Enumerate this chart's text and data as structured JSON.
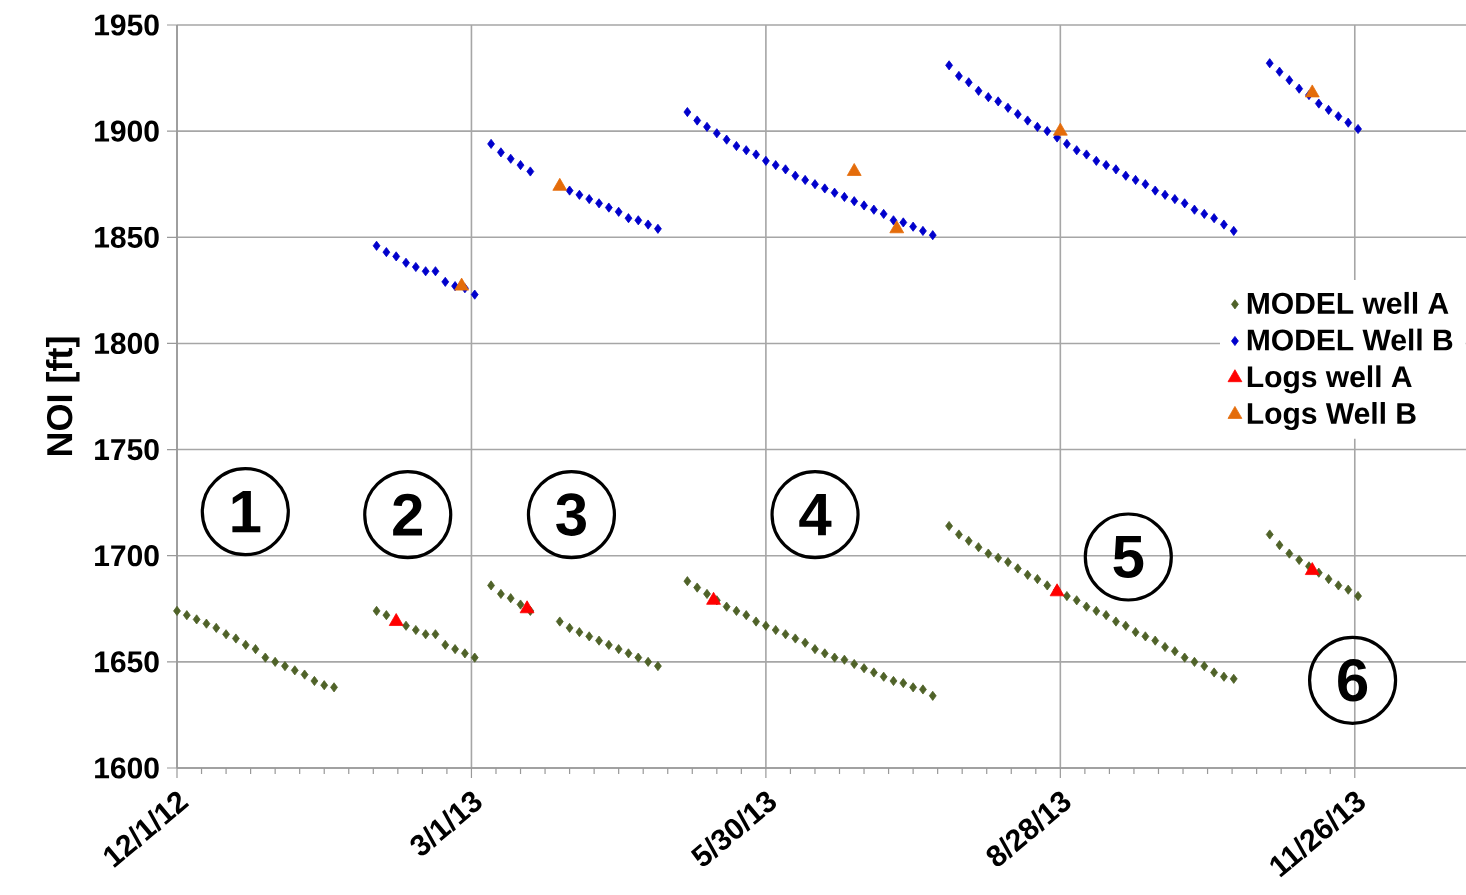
{
  "chart_data": {
    "type": "scatter",
    "ylabel": "NOI [ft]",
    "xlim": [
      "2012-12-01",
      "2013-12-30"
    ],
    "ylim": [
      1600,
      1950
    ],
    "xticks": [
      {
        "value": "2012-12-01",
        "label": "12/1/12"
      },
      {
        "value": "2013-03-01",
        "label": "3/1/13"
      },
      {
        "value": "2013-05-30",
        "label": "5/30/13"
      },
      {
        "value": "2013-08-28",
        "label": "8/28/13"
      },
      {
        "value": "2013-11-26",
        "label": "11/26/13"
      }
    ],
    "yticks": [
      1600,
      1650,
      1700,
      1750,
      1800,
      1850,
      1900,
      1950
    ],
    "grid": true,
    "legend": "right",
    "series": [
      {
        "name": "MODEL well A",
        "marker": "diamond",
        "color": "#4f6228",
        "x": [
          "2012-12-01",
          "2012-12-04",
          "2012-12-07",
          "2012-12-10",
          "2012-12-13",
          "2012-12-16",
          "2012-12-19",
          "2012-12-22",
          "2012-12-25",
          "2012-12-28",
          "2012-12-31",
          "2013-01-03",
          "2013-01-06",
          "2013-01-09",
          "2013-01-12",
          "2013-01-15",
          "2013-01-18",
          "2013-01-31",
          "2013-02-03",
          "2013-02-06",
          "2013-02-09",
          "2013-02-12",
          "2013-02-15",
          "2013-02-18",
          "2013-02-21",
          "2013-02-24",
          "2013-02-27",
          "2013-03-02",
          "2013-03-07",
          "2013-03-10",
          "2013-03-13",
          "2013-03-16",
          "2013-03-19",
          "2013-03-28",
          "2013-03-31",
          "2013-04-03",
          "2013-04-06",
          "2013-04-09",
          "2013-04-12",
          "2013-04-15",
          "2013-04-18",
          "2013-04-21",
          "2013-04-24",
          "2013-04-27",
          "2013-05-06",
          "2013-05-09",
          "2013-05-12",
          "2013-05-15",
          "2013-05-18",
          "2013-05-21",
          "2013-05-24",
          "2013-05-27",
          "2013-05-30",
          "2013-06-02",
          "2013-06-05",
          "2013-06-08",
          "2013-06-11",
          "2013-06-14",
          "2013-06-17",
          "2013-06-20",
          "2013-06-23",
          "2013-06-26",
          "2013-06-29",
          "2013-07-02",
          "2013-07-05",
          "2013-07-08",
          "2013-07-11",
          "2013-07-14",
          "2013-07-17",
          "2013-07-20",
          "2013-07-25",
          "2013-07-28",
          "2013-07-31",
          "2013-08-03",
          "2013-08-06",
          "2013-08-09",
          "2013-08-12",
          "2013-08-15",
          "2013-08-18",
          "2013-08-21",
          "2013-08-24",
          "2013-08-27",
          "2013-08-30",
          "2013-09-02",
          "2013-09-05",
          "2013-09-08",
          "2013-09-11",
          "2013-09-14",
          "2013-09-17",
          "2013-09-20",
          "2013-09-23",
          "2013-09-26",
          "2013-09-29",
          "2013-10-02",
          "2013-10-05",
          "2013-10-08",
          "2013-10-11",
          "2013-10-14",
          "2013-10-17",
          "2013-10-20",
          "2013-10-31",
          "2013-11-03",
          "2013-11-06",
          "2013-11-09",
          "2013-11-12",
          "2013-11-15",
          "2013-11-18",
          "2013-11-21",
          "2013-11-24",
          "2013-11-27"
        ],
        "values": [
          1674,
          1672,
          1670,
          1668,
          1666,
          1663,
          1661,
          1658,
          1656,
          1652,
          1650,
          1648,
          1646,
          1644,
          1641,
          1639,
          1638,
          1674,
          1672,
          null,
          1667,
          1665,
          1663,
          1663,
          1658,
          1656,
          1654,
          1652,
          1686,
          1682,
          1680,
          1677,
          1674,
          1669,
          1666,
          1664,
          1662,
          1660,
          1658,
          1656,
          1654,
          1652,
          1650,
          1648,
          1688,
          1685,
          1682,
          1679,
          1676,
          1674,
          1672,
          1669,
          1667,
          1665,
          1663,
          1661,
          1659,
          1656,
          1654,
          1652,
          1651,
          1649,
          1647,
          1645,
          1643,
          1641,
          1640,
          1638,
          1637,
          1634,
          1714,
          1710,
          1707,
          1704,
          1701,
          1699,
          1697,
          1694,
          1691,
          1689,
          1686,
          1684,
          1681,
          1679,
          1676,
          1674,
          1672,
          1669,
          1667,
          1664,
          1662,
          1660,
          1657,
          1655,
          1652,
          1650,
          1648,
          1645,
          1643,
          1642,
          1710,
          1705,
          1701,
          1698,
          1695,
          1692,
          1689,
          1686,
          1684,
          1681
        ]
      },
      {
        "name": "MODEL Well B",
        "marker": "diamond",
        "color": "#0000cc",
        "x": [
          "2013-01-31",
          "2013-02-03",
          "2013-02-06",
          "2013-02-09",
          "2013-02-12",
          "2013-02-15",
          "2013-02-18",
          "2013-02-21",
          "2013-02-24",
          "2013-02-27",
          "2013-03-02",
          "2013-03-07",
          "2013-03-10",
          "2013-03-13",
          "2013-03-16",
          "2013-03-19",
          "2013-03-28",
          "2013-03-31",
          "2013-04-03",
          "2013-04-06",
          "2013-04-09",
          "2013-04-12",
          "2013-04-15",
          "2013-04-18",
          "2013-04-21",
          "2013-04-24",
          "2013-04-27",
          "2013-05-06",
          "2013-05-09",
          "2013-05-12",
          "2013-05-15",
          "2013-05-18",
          "2013-05-21",
          "2013-05-24",
          "2013-05-27",
          "2013-05-30",
          "2013-06-02",
          "2013-06-05",
          "2013-06-08",
          "2013-06-11",
          "2013-06-14",
          "2013-06-17",
          "2013-06-20",
          "2013-06-23",
          "2013-06-26",
          "2013-06-29",
          "2013-07-02",
          "2013-07-05",
          "2013-07-08",
          "2013-07-11",
          "2013-07-14",
          "2013-07-17",
          "2013-07-20",
          "2013-07-25",
          "2013-07-28",
          "2013-07-31",
          "2013-08-03",
          "2013-08-06",
          "2013-08-09",
          "2013-08-12",
          "2013-08-15",
          "2013-08-18",
          "2013-08-21",
          "2013-08-24",
          "2013-08-27",
          "2013-08-30",
          "2013-09-02",
          "2013-09-05",
          "2013-09-08",
          "2013-09-11",
          "2013-09-14",
          "2013-09-17",
          "2013-09-20",
          "2013-09-23",
          "2013-09-26",
          "2013-09-29",
          "2013-10-02",
          "2013-10-05",
          "2013-10-08",
          "2013-10-11",
          "2013-10-14",
          "2013-10-17",
          "2013-10-20",
          "2013-10-31",
          "2013-11-03",
          "2013-11-06",
          "2013-11-09",
          "2013-11-12",
          "2013-11-15",
          "2013-11-18",
          "2013-11-21",
          "2013-11-24",
          "2013-11-27"
        ],
        "values": [
          1846,
          1843,
          1841,
          1838,
          1836,
          1834,
          1834,
          1829,
          1827,
          1826,
          1823,
          1894,
          1890,
          1887,
          1884,
          1881,
          null,
          1872,
          1870,
          1868,
          1866,
          1864,
          1862,
          1859,
          1858,
          1856,
          1854,
          1909,
          1905,
          1902,
          1899,
          1896,
          1893,
          1891,
          1889,
          1886,
          1884,
          1882,
          1879,
          1877,
          1875,
          1873,
          1871,
          1869,
          1867,
          1865,
          1863,
          1861,
          1858,
          1857,
          1855,
          1853,
          1851,
          1931,
          1926,
          1923,
          1919,
          1916,
          1914,
          1911,
          1908,
          1905,
          1902,
          1900,
          1897,
          1894,
          1891,
          1889,
          1886,
          1884,
          1882,
          1879,
          1877,
          1875,
          1872,
          1870,
          1868,
          1866,
          1863,
          1861,
          1859,
          1856,
          1853,
          1932,
          1928,
          1924,
          1920,
          1917,
          1913,
          1910,
          1907,
          1904,
          1901
        ]
      },
      {
        "name": "Logs well A",
        "marker": "triangle",
        "color": "#ff0000",
        "x": [
          "2013-02-06",
          "2013-03-18",
          "2013-05-14",
          "2013-08-27",
          "2013-11-13"
        ],
        "values": [
          1669,
          1675,
          1679,
          1683,
          1693
        ]
      },
      {
        "name": "Logs Well B",
        "marker": "triangle",
        "color": "#e46c0a",
        "x": [
          "2013-02-26",
          "2013-03-28",
          "2013-06-26",
          "2013-07-09",
          "2013-08-28",
          "2013-11-13"
        ],
        "values": [
          1827,
          1874,
          1881,
          1854,
          1900,
          1918
        ]
      }
    ],
    "annotations": [
      "1",
      "2",
      "3",
      "4",
      "5",
      "6"
    ]
  }
}
